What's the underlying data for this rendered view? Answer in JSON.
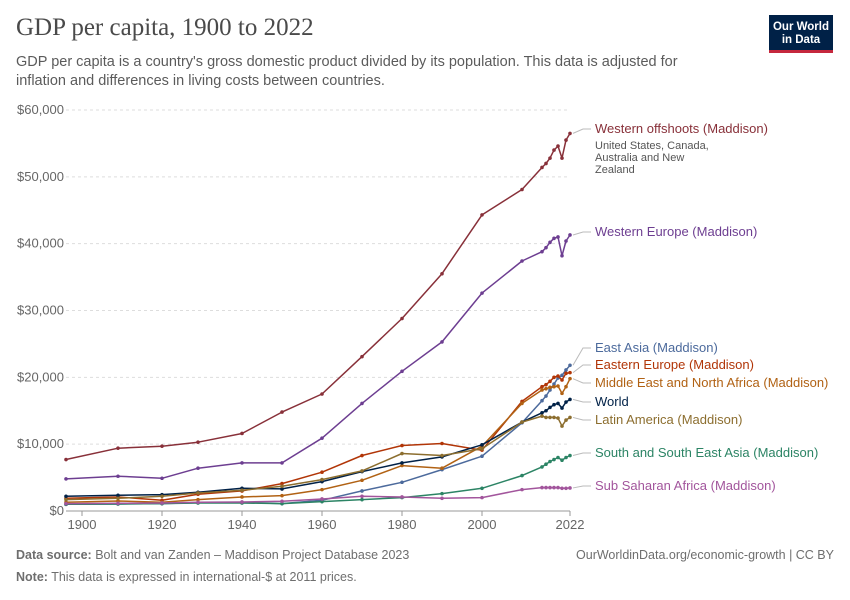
{
  "header": {
    "title": "GDP per capita, 1900 to 2022",
    "subtitle": "GDP per capita is a country's gross domestic product divided by its population. This data is adjusted for inflation and differences in living costs between countries.",
    "logo_line1": "Our World",
    "logo_line2": "in Data"
  },
  "footer": {
    "source_label": "Data source:",
    "source_text": "Bolt and van Zanden – Maddison Project Database 2023",
    "note_label": "Note:",
    "note_text": "This data is expressed in international-$ at 2011 prices.",
    "credit": "OurWorldinData.org/economic-growth | CC BY"
  },
  "chart_data": {
    "type": "line",
    "title": "GDP per capita, 1900 to 2022",
    "xlabel": "",
    "ylabel": "",
    "xlim": [
      1896,
      2022
    ],
    "ylim": [
      0,
      60000
    ],
    "xticks": [
      1900,
      1920,
      1940,
      1960,
      1980,
      2000,
      2022
    ],
    "yticks": [
      0,
      10000,
      20000,
      30000,
      40000,
      50000,
      60000
    ],
    "ytick_labels": [
      "$0",
      "$10,000",
      "$20,000",
      "$30,000",
      "$40,000",
      "$50,000",
      "$60,000"
    ],
    "grid": "horizontal-dashed",
    "legend": "right-end-labels",
    "series": [
      {
        "name": "Western offshoots (Maddison)",
        "note": [
          "United States, Canada,",
          "Australia and New",
          "Zealand"
        ],
        "color": "#883039",
        "x": [
          1896,
          1909,
          1920,
          1929,
          1940,
          1950,
          1960,
          1970,
          1980,
          1990,
          2000,
          2010,
          2015,
          2016,
          2017,
          2018,
          2019,
          2020,
          2021,
          2022
        ],
        "y": [
          7700,
          9400,
          9700,
          10300,
          11600,
          14800,
          17500,
          23100,
          28800,
          35500,
          44300,
          48100,
          51400,
          52000,
          52800,
          54000,
          54600,
          52800,
          55500,
          56500
        ]
      },
      {
        "name": "Western Europe (Maddison)",
        "color": "#6d3e91",
        "x": [
          1896,
          1909,
          1920,
          1929,
          1940,
          1950,
          1960,
          1970,
          1980,
          1990,
          2000,
          2010,
          2015,
          2016,
          2017,
          2018,
          2019,
          2020,
          2021,
          2022
        ],
        "y": [
          4800,
          5200,
          4900,
          6400,
          7200,
          7200,
          10900,
          16100,
          20900,
          25300,
          32600,
          37400,
          38800,
          39400,
          40200,
          40800,
          41000,
          38200,
          40400,
          41300
        ]
      },
      {
        "name": "East Asia (Maddison)",
        "color": "#4c6a9c",
        "x": [
          1896,
          1909,
          1920,
          1929,
          1940,
          1950,
          1960,
          1970,
          1980,
          1990,
          2000,
          2010,
          2015,
          2016,
          2017,
          2018,
          2019,
          2020,
          2021,
          2022
        ],
        "y": [
          1000,
          1050,
          1100,
          1250,
          1300,
          1100,
          1600,
          3000,
          4300,
          6200,
          8200,
          13200,
          16500,
          17200,
          18100,
          19000,
          19900,
          20300,
          21100,
          21800
        ]
      },
      {
        "name": "Eastern Europe (Maddison)",
        "color": "#b13507",
        "x": [
          1896,
          1909,
          1920,
          1929,
          1940,
          1950,
          1960,
          1970,
          1980,
          1990,
          2000,
          2010,
          2015,
          2016,
          2017,
          2018,
          2019,
          2020,
          2021,
          2022
        ],
        "y": [
          1900,
          2100,
          1600,
          2500,
          3000,
          4100,
          5800,
          8300,
          9800,
          10100,
          9100,
          16400,
          18600,
          18900,
          19400,
          20000,
          20200,
          19600,
          20600,
          20700
        ]
      },
      {
        "name": "Middle East and North Africa (Maddison)",
        "color": "#b16214",
        "x": [
          1896,
          1909,
          1920,
          1929,
          1940,
          1950,
          1960,
          1970,
          1980,
          1990,
          2000,
          2010,
          2015,
          2016,
          2017,
          2018,
          2019,
          2020,
          2021,
          2022
        ],
        "y": [
          1300,
          1500,
          1300,
          1700,
          2100,
          2300,
          3200,
          4600,
          6800,
          6400,
          9700,
          16100,
          18100,
          18300,
          18500,
          18600,
          18700,
          17600,
          18600,
          19800
        ]
      },
      {
        "name": "World",
        "color": "#002147",
        "x": [
          1896,
          1909,
          1920,
          1929,
          1940,
          1950,
          1960,
          1970,
          1980,
          1990,
          2000,
          2010,
          2015,
          2016,
          2017,
          2018,
          2019,
          2020,
          2021,
          2022
        ],
        "y": [
          2200,
          2350,
          2450,
          2800,
          3400,
          3300,
          4400,
          5900,
          7200,
          8100,
          9900,
          13300,
          14700,
          15000,
          15500,
          15900,
          16100,
          15400,
          16300,
          16700
        ]
      },
      {
        "name": "Latin America (Maddison)",
        "color": "#8c6e2f",
        "x": [
          1896,
          1909,
          1920,
          1929,
          1940,
          1950,
          1960,
          1970,
          1980,
          1990,
          2000,
          2010,
          2015,
          2016,
          2017,
          2018,
          2019,
          2020,
          2021,
          2022
        ],
        "y": [
          1700,
          1900,
          2200,
          2700,
          3100,
          3700,
          4700,
          6000,
          8600,
          8300,
          9300,
          13300,
          14200,
          14000,
          14000,
          14000,
          13900,
          12700,
          13600,
          14000
        ]
      },
      {
        "name": "South and South East Asia (Maddison)",
        "color": "#2c8465",
        "x": [
          1896,
          1909,
          1920,
          1929,
          1940,
          1950,
          1960,
          1970,
          1980,
          1990,
          2000,
          2010,
          2015,
          2016,
          2017,
          2018,
          2019,
          2020,
          2021,
          2022
        ],
        "y": [
          1000,
          1050,
          1100,
          1200,
          1200,
          1100,
          1400,
          1700,
          2000,
          2600,
          3400,
          5300,
          6600,
          7000,
          7400,
          7700,
          8000,
          7600,
          8000,
          8300
        ]
      },
      {
        "name": "Sub Saharan Africa (Maddison)",
        "color": "#a2559c",
        "x": [
          1896,
          1909,
          1920,
          1929,
          1940,
          1950,
          1960,
          1970,
          1980,
          1990,
          2000,
          2010,
          2015,
          2016,
          2017,
          2018,
          2019,
          2020,
          2021,
          2022
        ],
        "y": [
          1100,
          1150,
          1200,
          1300,
          1350,
          1450,
          1800,
          2200,
          2100,
          1900,
          2000,
          3200,
          3500,
          3500,
          3500,
          3500,
          3500,
          3400,
          3400,
          3450
        ]
      }
    ]
  }
}
